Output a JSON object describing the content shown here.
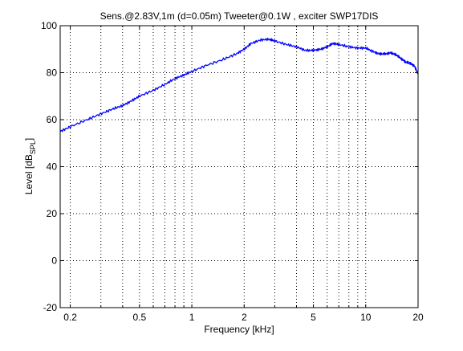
{
  "chart_data": {
    "type": "line",
    "title": "Sens.@2.83V,1m (d=0.05m)   Tweeter@0.1W  , exciter SWP17DIS",
    "xlabel": "Frequency [kHz]",
    "ylabel": "Level [dB",
    "ylabel_subscript": "SPL",
    "ylabel_close": "]",
    "x_scale": "log",
    "xlim": [
      0.175,
      20
    ],
    "ylim": [
      -20,
      100
    ],
    "x_ticks": [
      0.2,
      0.5,
      1,
      2,
      5,
      10,
      20
    ],
    "x_tick_labels": [
      "0.2",
      "0.5",
      "1",
      "2",
      "5",
      "10",
      "20"
    ],
    "x_minor_grid": [
      0.3,
      0.4,
      0.6,
      0.7,
      0.8,
      0.9,
      3,
      4,
      6,
      7,
      8,
      9
    ],
    "y_ticks": [
      -20,
      0,
      20,
      40,
      60,
      80,
      100
    ],
    "y_tick_labels": [
      "-20",
      "0",
      "20",
      "40",
      "60",
      "80",
      "100"
    ],
    "grid": true,
    "grid_style": "dotted",
    "series": [
      {
        "color": "#0000ff",
        "x": [
          0.175,
          0.2,
          0.25,
          0.3,
          0.35,
          0.4,
          0.45,
          0.5,
          0.6,
          0.7,
          0.8,
          0.9,
          1.0,
          1.2,
          1.5,
          1.8,
          2.0,
          2.2,
          2.5,
          2.8,
          3.0,
          3.5,
          4.0,
          4.5,
          5.0,
          5.5,
          6.0,
          6.5,
          7.0,
          8.0,
          9.0,
          10,
          11,
          12,
          13,
          14,
          15,
          16,
          17,
          18,
          19,
          20
        ],
        "y": [
          55,
          57,
          60,
          62.5,
          64.5,
          66,
          68,
          70,
          72.5,
          75,
          77.5,
          79,
          80.5,
          83,
          85.5,
          88,
          90,
          92.5,
          94,
          94.2,
          93.5,
          92,
          91,
          89.5,
          89.5,
          90,
          91,
          92.5,
          92,
          91,
          90.5,
          90.5,
          89,
          88,
          88,
          88.5,
          87.5,
          86,
          84.5,
          84,
          83,
          79.5
        ]
      }
    ]
  }
}
